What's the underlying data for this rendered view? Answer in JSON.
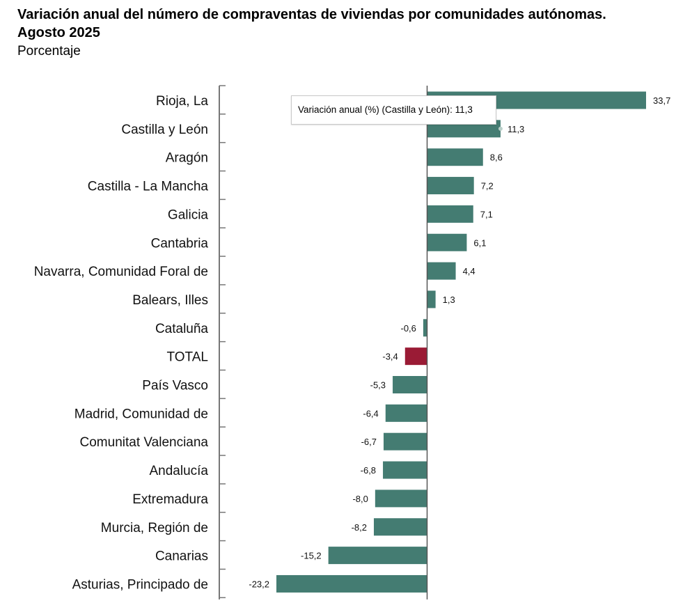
{
  "title_line1": "Variación anual del número de compraventas de viviendas por comunidades autónomas.",
  "title_line2": "Agosto 2025",
  "subtitle": "Porcentaje",
  "tooltip": {
    "text": "Variación anual (%) (Castilla y León): 11,3",
    "category": "Castilla y León"
  },
  "colors": {
    "bar": "#447c72",
    "highlight": "#9a1b35",
    "axis": "#777777"
  },
  "chart_data": {
    "type": "bar",
    "orientation": "horizontal",
    "title": "Variación anual del número de compraventas de viviendas por comunidades autónomas. Agosto 2025",
    "subtitle": "Porcentaje",
    "xlabel": "",
    "ylabel": "",
    "xlim": [
      -23.2,
      33.7
    ],
    "categories": [
      "Rioja, La",
      "Castilla y León",
      "Aragón",
      "Castilla - La Mancha",
      "Galicia",
      "Cantabria",
      "Navarra, Comunidad Foral de",
      "Balears, Illes",
      "Cataluña",
      "TOTAL",
      "País Vasco",
      "Madrid, Comunidad de",
      "Comunitat Valenciana",
      "Andalucía",
      "Extremadura",
      "Murcia, Región de",
      "Canarias",
      "Asturias, Principado de"
    ],
    "values": [
      33.7,
      11.3,
      8.6,
      7.2,
      7.1,
      6.1,
      4.4,
      1.3,
      -0.6,
      -3.4,
      -5.3,
      -6.4,
      -6.7,
      -6.8,
      -8.0,
      -8.2,
      -15.2,
      -23.2
    ],
    "value_labels": [
      "33,7",
      "11,3",
      "8,6",
      "7,2",
      "7,1",
      "6,1",
      "4,4",
      "1,3",
      "-0,6",
      "-3,4",
      "-5,3",
      "-6,4",
      "-6,7",
      "-6,8",
      "-8,0",
      "-8,2",
      "-15,2",
      "-23,2"
    ],
    "highlight_category": "TOTAL",
    "grid": false,
    "legend": "none"
  }
}
